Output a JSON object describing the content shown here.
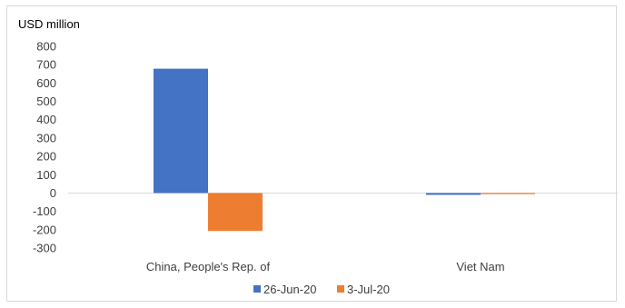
{
  "chart_data": {
    "type": "bar",
    "unit_label": "USD million",
    "categories": [
      "China, People's Rep. of",
      "Viet Nam"
    ],
    "series": [
      {
        "name": "26-Jun-20",
        "color": "#4472c4",
        "values": [
          678,
          -10
        ]
      },
      {
        "name": "3-Jul-20",
        "color": "#ed7d31",
        "values": [
          -207,
          -6
        ]
      }
    ],
    "ylim": [
      -300,
      800
    ],
    "yticks": [
      800,
      700,
      600,
      500,
      400,
      300,
      200,
      100,
      0,
      -100,
      -200,
      -300
    ],
    "grid": false,
    "legend_position": "bottom"
  }
}
